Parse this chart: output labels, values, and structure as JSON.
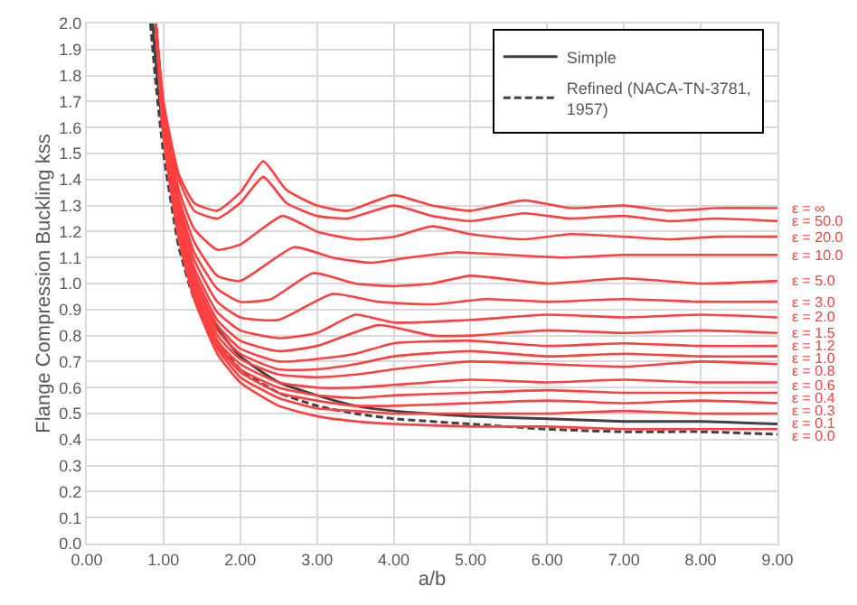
{
  "chart_data": {
    "type": "line",
    "xlabel": "a/b",
    "ylabel": "Flange Compression Buckling kss",
    "xlim": [
      0,
      9
    ],
    "ylim": [
      0,
      2
    ],
    "xticks": [
      {
        "value": 0,
        "label": "0.00"
      },
      {
        "value": 1,
        "label": "1.00"
      },
      {
        "value": 2,
        "label": "2.00"
      },
      {
        "value": 3,
        "label": "3.00"
      },
      {
        "value": 4,
        "label": "4.00"
      },
      {
        "value": 5,
        "label": "5.00"
      },
      {
        "value": 6,
        "label": "6.00"
      },
      {
        "value": 7,
        "label": "7.00"
      },
      {
        "value": 8,
        "label": "8.00"
      },
      {
        "value": 9,
        "label": "9.00"
      }
    ],
    "yticks": [
      {
        "value": 0,
        "label": "0.0"
      },
      0.1,
      0.2,
      0.3,
      0.4,
      0.5,
      0.6,
      0.7,
      0.8,
      0.9,
      {
        "value": 1,
        "label": "1.0"
      },
      1.1,
      1.2,
      1.3,
      1.4,
      1.5,
      1.6,
      1.7,
      1.8,
      1.9,
      {
        "value": 2,
        "label": "2.0"
      }
    ],
    "grid": true,
    "legend": "top right",
    "marker": "none",
    "series": [
      {
        "name": "Simple",
        "color": "#404040",
        "line_style": "solid",
        "x": [
          0.86,
          0.9,
          1,
          1.2,
          1.4,
          1.7,
          2,
          2.5,
          3,
          3.5,
          4,
          5,
          6,
          7,
          8,
          9
        ],
        "values": [
          2.0,
          1.85,
          1.58,
          1.2,
          1.0,
          0.83,
          0.72,
          0.62,
          0.57,
          0.53,
          0.51,
          0.49,
          0.48,
          0.47,
          0.47,
          0.46
        ]
      },
      {
        "name": "Refined (NACA-TN-3781, 1957)",
        "color": "#404040",
        "line_style": "dashed",
        "x": [
          0.83,
          0.9,
          1,
          1.2,
          1.4,
          1.7,
          2,
          2.5,
          3,
          3.5,
          4,
          5,
          6,
          7,
          8,
          9
        ],
        "values": [
          2.0,
          1.77,
          1.5,
          1.14,
          0.94,
          0.78,
          0.67,
          0.58,
          0.53,
          0.5,
          0.48,
          0.46,
          0.44,
          0.43,
          0.43,
          0.42
        ]
      },
      {
        "name": "ε = ∞",
        "color": "#ff4040",
        "x": [
          0.9,
          1,
          1.2,
          1.4,
          1.7,
          2.0,
          2.3,
          2.6,
          3.0,
          3.4,
          4.0,
          4.5,
          5.0,
          5.7,
          6.3,
          7.0,
          7.6,
          8.2,
          9
        ],
        "values": [
          2.0,
          1.7,
          1.42,
          1.31,
          1.28,
          1.35,
          1.47,
          1.36,
          1.3,
          1.28,
          1.34,
          1.3,
          1.28,
          1.32,
          1.29,
          1.3,
          1.28,
          1.29,
          1.29
        ]
      },
      {
        "name": "ε = 50.0",
        "color": "#ff4040",
        "x": [
          0.9,
          1,
          1.2,
          1.4,
          1.7,
          2.0,
          2.3,
          2.6,
          3.0,
          3.4,
          4.0,
          4.5,
          5.0,
          5.7,
          6.3,
          7.0,
          7.6,
          8.2,
          9
        ],
        "values": [
          2.0,
          1.69,
          1.4,
          1.28,
          1.25,
          1.31,
          1.41,
          1.31,
          1.26,
          1.25,
          1.3,
          1.26,
          1.24,
          1.27,
          1.25,
          1.26,
          1.24,
          1.25,
          1.24
        ]
      },
      {
        "name": "ε = 20.0",
        "color": "#ff4040",
        "x": [
          0.9,
          1,
          1.2,
          1.4,
          1.7,
          2.0,
          2.55,
          3.0,
          3.5,
          4.0,
          4.5,
          5.0,
          5.7,
          6.3,
          7.0,
          7.6,
          8.2,
          9
        ],
        "values": [
          2.0,
          1.68,
          1.36,
          1.21,
          1.13,
          1.15,
          1.26,
          1.2,
          1.17,
          1.18,
          1.22,
          1.19,
          1.17,
          1.19,
          1.18,
          1.17,
          1.18,
          1.18
        ]
      },
      {
        "name": "ε = 10.0",
        "color": "#ff4040",
        "x": [
          0.9,
          1,
          1.2,
          1.4,
          1.7,
          2.0,
          2.7,
          3.2,
          3.7,
          4.2,
          4.8,
          5.5,
          6.2,
          7.0,
          7.8,
          8.5,
          9
        ],
        "values": [
          2.0,
          1.67,
          1.33,
          1.16,
          1.03,
          1.01,
          1.14,
          1.1,
          1.08,
          1.1,
          1.12,
          1.11,
          1.1,
          1.11,
          1.11,
          1.11,
          1.11
        ]
      },
      {
        "name": "ε = 5.0",
        "color": "#ff4040",
        "x": [
          0.9,
          1,
          1.2,
          1.4,
          1.7,
          2.0,
          2.4,
          2.95,
          3.5,
          4.0,
          4.5,
          5.0,
          6.0,
          7.0,
          8.0,
          9
        ],
        "values": [
          2.0,
          1.66,
          1.31,
          1.12,
          0.98,
          0.93,
          0.94,
          1.04,
          1.0,
          0.99,
          1.0,
          1.03,
          1.0,
          1.02,
          1.0,
          1.01
        ]
      },
      {
        "name": "ε = 3.0",
        "color": "#ff4040",
        "x": [
          0.9,
          1,
          1.2,
          1.4,
          1.7,
          2.0,
          2.5,
          3.2,
          3.8,
          4.5,
          5.2,
          6.0,
          7.0,
          8.0,
          9
        ],
        "values": [
          2.0,
          1.65,
          1.29,
          1.09,
          0.93,
          0.87,
          0.86,
          0.96,
          0.93,
          0.92,
          0.94,
          0.93,
          0.94,
          0.93,
          0.93
        ]
      },
      {
        "name": "ε = 2.0",
        "color": "#ff4040",
        "x": [
          0.9,
          1,
          1.2,
          1.4,
          1.7,
          2.0,
          2.5,
          3.0,
          3.5,
          4.0,
          5.0,
          6.0,
          7.0,
          8.0,
          9
        ],
        "values": [
          2.0,
          1.64,
          1.27,
          1.06,
          0.89,
          0.82,
          0.79,
          0.81,
          0.88,
          0.85,
          0.86,
          0.88,
          0.87,
          0.88,
          0.87
        ]
      },
      {
        "name": "ε = 1.5",
        "color": "#ff4040",
        "x": [
          0.9,
          1,
          1.2,
          1.4,
          1.7,
          2.0,
          2.5,
          3.0,
          3.8,
          4.5,
          5.0,
          6.0,
          7.0,
          8.0,
          9
        ],
        "values": [
          2.0,
          1.63,
          1.25,
          1.04,
          0.86,
          0.78,
          0.74,
          0.76,
          0.84,
          0.8,
          0.8,
          0.82,
          0.81,
          0.82,
          0.81
        ]
      },
      {
        "name": "ε = 1.2",
        "color": "#ff4040",
        "x": [
          0.9,
          1,
          1.2,
          1.4,
          1.7,
          2.0,
          2.5,
          3.0,
          3.5,
          4.0,
          5.0,
          6.0,
          7.0,
          8.0,
          9
        ],
        "values": [
          2.0,
          1.62,
          1.24,
          1.02,
          0.84,
          0.75,
          0.7,
          0.71,
          0.73,
          0.77,
          0.78,
          0.76,
          0.77,
          0.76,
          0.76
        ]
      },
      {
        "name": "ε = 1.0",
        "color": "#ff4040",
        "x": [
          0.9,
          1,
          1.2,
          1.4,
          1.7,
          2.0,
          2.5,
          3.0,
          3.5,
          4.0,
          5.0,
          6.0,
          7.0,
          8.0,
          9
        ],
        "values": [
          2.0,
          1.62,
          1.23,
          1.01,
          0.82,
          0.73,
          0.67,
          0.67,
          0.69,
          0.72,
          0.74,
          0.72,
          0.73,
          0.72,
          0.72
        ]
      },
      {
        "name": "ε = 0.8",
        "color": "#ff4040",
        "x": [
          0.9,
          1,
          1.2,
          1.4,
          1.7,
          2.0,
          2.5,
          3.0,
          3.5,
          4.0,
          5.0,
          6.0,
          7.0,
          8.0,
          9
        ],
        "values": [
          2.0,
          1.61,
          1.22,
          1.0,
          0.8,
          0.71,
          0.65,
          0.64,
          0.65,
          0.67,
          0.7,
          0.69,
          0.68,
          0.7,
          0.69
        ]
      },
      {
        "name": "ε = 0.6",
        "color": "#ff4040",
        "x": [
          0.9,
          1,
          1.2,
          1.4,
          1.7,
          2.0,
          2.5,
          3.0,
          3.5,
          4.0,
          5.0,
          6.0,
          7.0,
          8.0,
          9
        ],
        "values": [
          2.0,
          1.6,
          1.21,
          0.98,
          0.78,
          0.69,
          0.62,
          0.6,
          0.6,
          0.61,
          0.63,
          0.62,
          0.63,
          0.62,
          0.62
        ]
      },
      {
        "name": "ε = 0.4",
        "color": "#ff4040",
        "x": [
          0.9,
          1,
          1.2,
          1.4,
          1.7,
          2.0,
          2.5,
          3.0,
          3.5,
          4.0,
          5.0,
          6.0,
          7.0,
          8.0,
          9
        ],
        "values": [
          2.0,
          1.59,
          1.2,
          0.97,
          0.77,
          0.67,
          0.6,
          0.57,
          0.56,
          0.57,
          0.58,
          0.59,
          0.58,
          0.58,
          0.58
        ]
      },
      {
        "name": "ε = 0.3",
        "color": "#ff4040",
        "x": [
          0.9,
          1,
          1.2,
          1.4,
          1.7,
          2.0,
          2.5,
          3.0,
          3.5,
          4.0,
          5.0,
          6.0,
          7.0,
          8.0,
          9
        ],
        "values": [
          2.0,
          1.58,
          1.19,
          0.96,
          0.76,
          0.66,
          0.58,
          0.55,
          0.53,
          0.53,
          0.54,
          0.55,
          0.54,
          0.55,
          0.54
        ]
      },
      {
        "name": "ε = 0.1",
        "color": "#ff4040",
        "x": [
          0.9,
          1,
          1.2,
          1.4,
          1.7,
          2.0,
          2.5,
          3.0,
          3.5,
          4.0,
          5.0,
          6.0,
          7.0,
          8.0,
          9
        ],
        "values": [
          2.0,
          1.57,
          1.18,
          0.95,
          0.75,
          0.64,
          0.56,
          0.52,
          0.51,
          0.5,
          0.5,
          0.5,
          0.51,
          0.5,
          0.5
        ]
      },
      {
        "name": "ε = 0.0",
        "color": "#ff4040",
        "x": [
          0.9,
          1,
          1.2,
          1.4,
          1.7,
          2.0,
          2.5,
          3.0,
          3.5,
          4.0,
          5.0,
          6.0,
          7.0,
          8.0,
          9
        ],
        "values": [
          2.0,
          1.56,
          1.17,
          0.94,
          0.73,
          0.62,
          0.53,
          0.49,
          0.47,
          0.46,
          0.45,
          0.45,
          0.44,
          0.44,
          0.44
        ]
      }
    ]
  }
}
